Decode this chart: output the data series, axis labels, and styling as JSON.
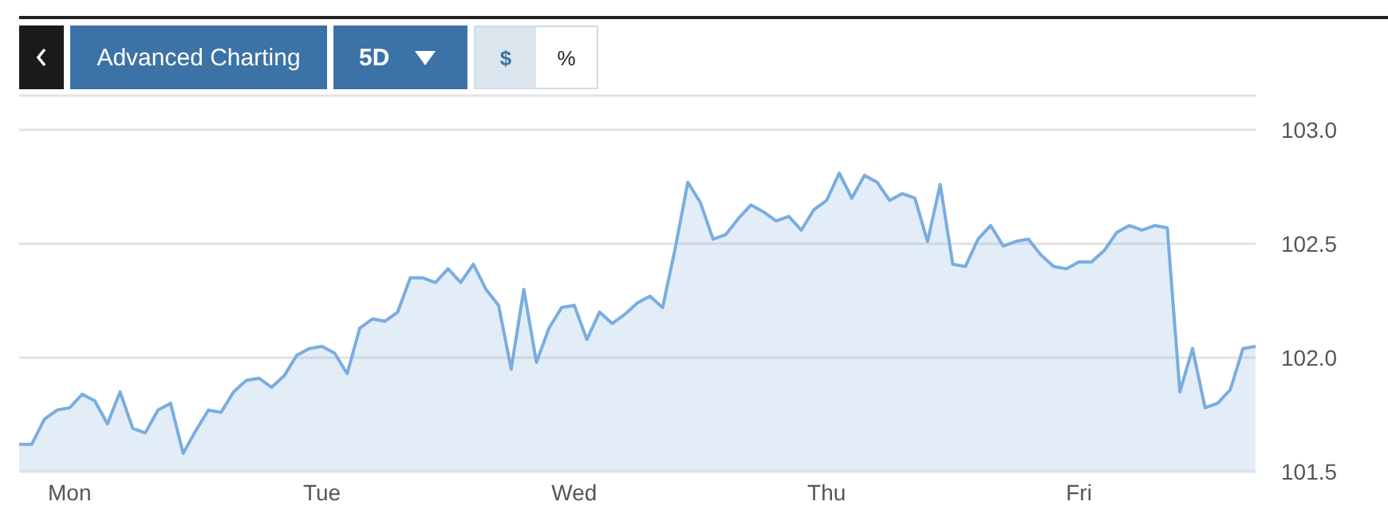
{
  "chart_data": {
    "type": "area",
    "annotations": [
      "Advanced Charting",
      "5D",
      "$",
      "%"
    ],
    "categories": [
      null,
      null,
      null,
      null,
      "Mon",
      null,
      null,
      null,
      null,
      null,
      null,
      null,
      null,
      null,
      null,
      null,
      null,
      null,
      null,
      null,
      null,
      null,
      null,
      null,
      "Tue",
      null,
      null,
      null,
      null,
      null,
      null,
      null,
      null,
      null,
      null,
      null,
      null,
      null,
      null,
      null,
      null,
      null,
      null,
      null,
      "Wed",
      null,
      null,
      null,
      null,
      null,
      null,
      null,
      null,
      null,
      null,
      null,
      null,
      null,
      null,
      null,
      null,
      null,
      null,
      null,
      "Thu",
      null,
      null,
      null,
      null,
      null,
      null,
      null,
      null,
      null,
      null,
      null,
      null,
      null,
      null,
      null,
      null,
      null,
      null,
      null,
      "Fri",
      null,
      null,
      null,
      null,
      null,
      null,
      null,
      null,
      null,
      null,
      null,
      null,
      null,
      null
    ],
    "series": [
      {
        "color": "#7aaddf",
        "values": [
          101.62,
          101.62,
          101.73,
          101.77,
          101.78,
          101.84,
          101.81,
          101.71,
          101.85,
          101.69,
          101.67,
          101.77,
          101.8,
          101.58,
          101.68,
          101.77,
          101.76,
          101.85,
          101.9,
          101.91,
          101.87,
          101.92,
          102.01,
          102.04,
          102.05,
          102.02,
          101.93,
          102.13,
          102.17,
          102.16,
          102.2,
          102.35,
          102.35,
          102.33,
          102.39,
          102.33,
          102.41,
          102.3,
          102.23,
          101.95,
          102.3,
          101.98,
          102.13,
          102.22,
          102.23,
          102.08,
          102.2,
          102.15,
          102.19,
          102.24,
          102.27,
          102.22,
          102.48,
          102.77,
          102.68,
          102.52,
          102.54,
          102.61,
          102.67,
          102.64,
          102.6,
          102.62,
          102.56,
          102.65,
          102.69,
          102.81,
          102.7,
          102.8,
          102.77,
          102.69,
          102.72,
          102.7,
          102.51,
          102.76,
          102.41,
          102.4,
          102.52,
          102.58,
          102.49,
          102.51,
          102.52,
          102.45,
          102.4,
          102.39,
          102.42,
          102.42,
          102.47,
          102.55,
          102.58,
          102.56,
          102.58,
          102.57,
          101.85,
          102.04,
          101.78,
          101.8,
          101.86,
          102.04,
          102.05
        ]
      }
    ],
    "ylim": [
      101.5,
      103.15
    ],
    "yticks": [
      101.5,
      {
        "value": 102,
        "label": "102.0"
      },
      102.5,
      {
        "value": 103,
        "label": "103.0"
      }
    ],
    "grid": "y"
  }
}
